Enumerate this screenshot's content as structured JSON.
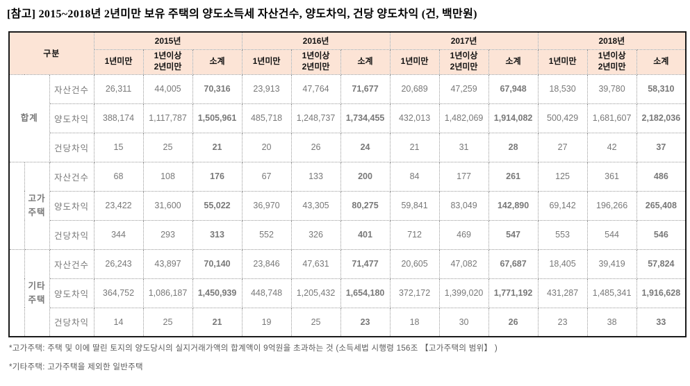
{
  "title": "[참고] 2015~2018년 2년미만 보유 주택의 양도소득세 자산건수, 양도차익, 건당 양도차익 (건, 백만원)",
  "table": {
    "corner_label": "구분",
    "years": [
      "2015년",
      "2016년",
      "2017년",
      "2018년"
    ],
    "sub_columns": [
      "1년미만",
      "1년이상\n2년미만",
      "소계"
    ],
    "metric_rows": [
      "자산건수",
      "양도차익",
      "건당차익"
    ],
    "groups": [
      {
        "label": "합계",
        "rows": [
          {
            "label": "자산건수",
            "values": [
              "26,311",
              "44,005",
              "70,316",
              "23,913",
              "47,764",
              "71,677",
              "20,689",
              "47,259",
              "67,948",
              "18,530",
              "39,780",
              "58,310"
            ]
          },
          {
            "label": "양도차익",
            "values": [
              "388,174",
              "1,117,787",
              "1,505,961",
              "485,718",
              "1,248,737",
              "1,734,455",
              "432,013",
              "1,482,069",
              "1,914,082",
              "500,429",
              "1,681,607",
              "2,182,036"
            ]
          },
          {
            "label": "건당차익",
            "values": [
              "15",
              "25",
              "21",
              "20",
              "26",
              "24",
              "21",
              "31",
              "28",
              "27",
              "42",
              "37"
            ]
          }
        ]
      },
      {
        "label": "고가\n주택",
        "rows": [
          {
            "label": "자산건수",
            "values": [
              "68",
              "108",
              "176",
              "67",
              "133",
              "200",
              "84",
              "177",
              "261",
              "125",
              "361",
              "486"
            ]
          },
          {
            "label": "양도차익",
            "values": [
              "23,422",
              "31,600",
              "55,022",
              "36,970",
              "43,305",
              "80,275",
              "59,841",
              "83,049",
              "142,890",
              "69,142",
              "196,266",
              "265,408"
            ]
          },
          {
            "label": "건당차익",
            "values": [
              "344",
              "293",
              "313",
              "552",
              "326",
              "401",
              "712",
              "469",
              "547",
              "553",
              "544",
              "546"
            ]
          }
        ]
      },
      {
        "label": "기타\n주택",
        "rows": [
          {
            "label": "자산건수",
            "values": [
              "26,243",
              "43,897",
              "70,140",
              "23,846",
              "47,631",
              "71,477",
              "20,605",
              "47,082",
              "67,687",
              "18,405",
              "39,419",
              "57,824"
            ]
          },
          {
            "label": "양도차익",
            "values": [
              "364,752",
              "1,086,187",
              "1,450,939",
              "448,748",
              "1,205,432",
              "1,654,180",
              "372,172",
              "1,399,020",
              "1,771,192",
              "431,287",
              "1,485,341",
              "1,916,628"
            ]
          },
          {
            "label": "건당차익",
            "values": [
              "14",
              "25",
              "21",
              "19",
              "25",
              "23",
              "18",
              "30",
              "26",
              "23",
              "38",
              "33"
            ]
          }
        ]
      }
    ]
  },
  "footnotes": [
    "*고가주택: 주택 및 이에 딸린 토지의 양도당시의 실지거래가액의 합계액이 9억원을 초과하는 것 (소득세법 시행령 156조 【고가주택의 범위】 )",
    "*기타주택: 고가주택을 제외한 일반주택"
  ],
  "colors": {
    "header_bg": "#fce4d6",
    "subtotal_bg": "#dbe2f2",
    "number_text": "#787878",
    "border": "#1a1a1a"
  }
}
